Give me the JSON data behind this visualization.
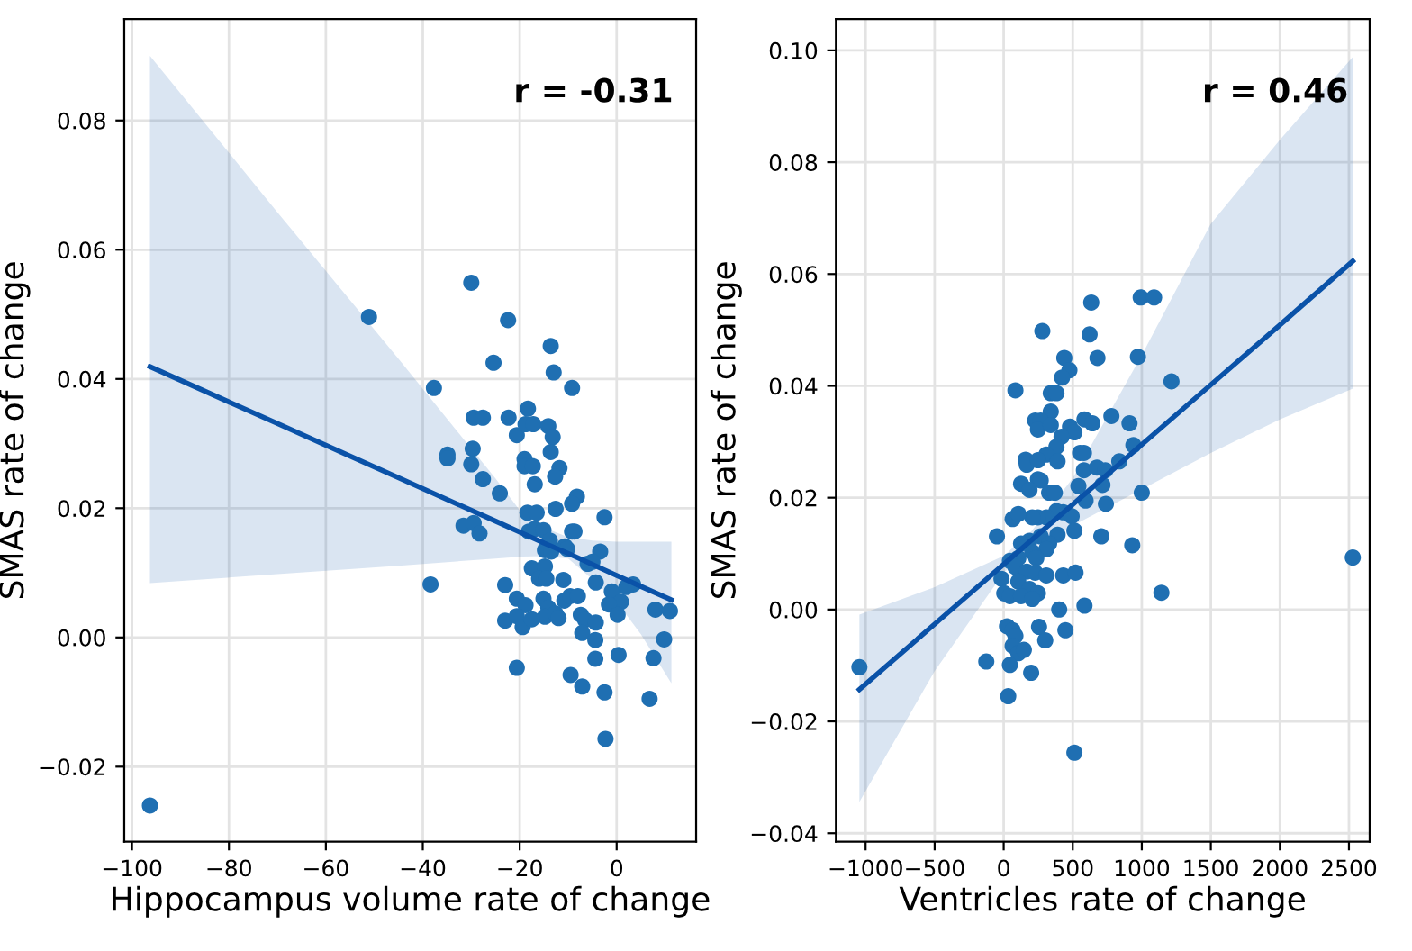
{
  "chart_data": [
    {
      "type": "scatter",
      "xlabel": "Hippocampus volume rate of change",
      "ylabel": "SMAS rate of change",
      "annotations": [
        "r = -0.31"
      ],
      "grid": true,
      "xlim": [
        -101.6,
        16.4
      ],
      "ylim": [
        -0.0316,
        0.0957
      ],
      "xticks": [
        {
          "value": -100,
          "label": "−100"
        },
        {
          "value": -80,
          "label": "−80"
        },
        {
          "value": -60,
          "label": "−60"
        },
        {
          "value": -40,
          "label": "−40"
        },
        {
          "value": -20,
          "label": "−20"
        },
        {
          "value": 0,
          "label": "0"
        }
      ],
      "yticks": [
        {
          "value": -0.02,
          "label": "−0.02"
        },
        {
          "value": 0,
          "label": "0.00"
        },
        {
          "value": 0.02,
          "label": "0.02"
        },
        {
          "value": 0.04,
          "label": "0.04"
        },
        {
          "value": 0.06,
          "label": "0.06"
        },
        {
          "value": 0.08,
          "label": "0.08"
        }
      ],
      "series": [
        {
          "type": "scatter",
          "color": "#1f6fb2",
          "marker": "circle",
          "x": [
            -96.3,
            -51.1,
            -30.0,
            -22.4,
            -13.6,
            -13.0,
            -9.2,
            -25.4,
            -37.7,
            -38.4,
            -34.9,
            -34.9,
            -29.5,
            -27.6,
            -29.7,
            -30.0,
            -27.6,
            -24.1,
            -31.6,
            -29.5,
            -28.3,
            -22.3,
            -20.6,
            -18.3,
            -18.8,
            -17.2,
            -14.1,
            -13.2,
            -13.6,
            -19.0,
            -19.0,
            -17.3,
            -16.9,
            -11.8,
            -12.7,
            -8.2,
            -9.2,
            -18.4,
            -16.5,
            -12.6,
            -2.5,
            -9.2,
            -8.7,
            -18.1,
            -16.9,
            -15.1,
            -13.8,
            -14.8,
            -13.5,
            -10.7,
            -10.2,
            -3.4,
            -6.0,
            -5.0,
            -17.5,
            -14.8,
            -16.0,
            -14.5,
            -11.0,
            -4.3,
            -1.0,
            3.4,
            2.0,
            0.9,
            -1.6,
            -23.0,
            -20.6,
            -18.8,
            -15.1,
            -14.1,
            -14.8,
            -12.6,
            -12.0,
            -10.8,
            -9.6,
            -8.0,
            -23.0,
            -20.6,
            -19.4,
            -17.5,
            -7.4,
            -6.5,
            -7.1,
            -4.3,
            -4.4,
            -4.4,
            0.2,
            8.0,
            11.0,
            9.8,
            0.4,
            7.6,
            -20.6,
            -9.5,
            -7.1,
            -2.5,
            6.8,
            -2.3
          ],
          "values": [
            -0.026,
            0.0496,
            0.0549,
            0.0491,
            0.0451,
            0.041,
            0.0386,
            0.0425,
            0.0386,
            0.0082,
            0.0283,
            0.0277,
            0.034,
            0.034,
            0.0292,
            0.0268,
            0.0245,
            0.0223,
            0.0173,
            0.0177,
            0.0161,
            0.034,
            0.0313,
            0.0354,
            0.033,
            0.033,
            0.0327,
            0.031,
            0.0287,
            0.0276,
            0.0265,
            0.0265,
            0.0237,
            0.0262,
            0.0249,
            0.0218,
            0.0207,
            0.0193,
            0.0193,
            0.0199,
            0.0186,
            0.0164,
            0.0164,
            0.0164,
            0.0168,
            0.0166,
            0.015,
            0.0135,
            0.0133,
            0.0141,
            0.0137,
            0.0133,
            0.0114,
            0.0117,
            0.0107,
            0.011,
            0.0091,
            0.0091,
            0.0089,
            0.0085,
            0.0071,
            0.0082,
            0.0078,
            0.0055,
            0.0051,
            0.0081,
            0.006,
            0.005,
            0.006,
            0.0046,
            0.0032,
            0.0037,
            0.003,
            0.0057,
            0.0064,
            0.0064,
            0.0026,
            0.0033,
            0.0016,
            0.0028,
            0.0035,
            0.0027,
            0.0007,
            0.0023,
            -0.0004,
            -0.0033,
            0.0035,
            0.0043,
            0.0041,
            -0.0003,
            -0.0027,
            -0.0032,
            -0.0047,
            -0.0058,
            -0.0076,
            -0.0085,
            -0.0095,
            -0.0157
          ]
        },
        {
          "type": "line",
          "color": "#0a52a8",
          "x": [
            -96.3,
            -70,
            -45,
            -25,
            -19.4,
            -15,
            -10,
            -5,
            0,
            5,
            11.3
          ],
          "values": [
            0.0419,
            0.0331,
            0.0247,
            0.018,
            0.0161,
            0.0146,
            0.013,
            0.0113,
            0.0096,
            0.0079,
            0.0058
          ],
          "upper": [
            0.09,
            0.0658,
            0.0431,
            0.0246,
            0.0191,
            0.017,
            0.0155,
            0.015,
            0.0148,
            0.0148,
            0.0148
          ],
          "lower": [
            0.0084,
            0.0098,
            0.0111,
            0.0122,
            0.0125,
            0.0126,
            0.0122,
            0.009,
            0.0055,
            0.0005,
            -0.0071
          ]
        }
      ]
    },
    {
      "type": "scatter",
      "xlabel": "Ventricles rate of change",
      "ylabel": "SMAS rate of change",
      "annotations": [
        "r = 0.46"
      ],
      "grid": true,
      "xlim": [
        -1215,
        2650
      ],
      "ylim": [
        -0.0415,
        0.1056
      ],
      "xticks": [
        {
          "value": -1000,
          "label": "−1000"
        },
        {
          "value": -500,
          "label": "−500"
        },
        {
          "value": 0,
          "label": "0"
        },
        {
          "value": 500,
          "label": "500"
        },
        {
          "value": 1000,
          "label": "1000"
        },
        {
          "value": 1500,
          "label": "1500"
        },
        {
          "value": 2000,
          "label": "2000"
        },
        {
          "value": 2500,
          "label": "2500"
        }
      ],
      "yticks": [
        {
          "value": -0.04,
          "label": "−0.04"
        },
        {
          "value": -0.02,
          "label": "−0.02"
        },
        {
          "value": 0,
          "label": "0.00"
        },
        {
          "value": 0.02,
          "label": "0.02"
        },
        {
          "value": 0.04,
          "label": "0.04"
        },
        {
          "value": 0.06,
          "label": "0.06"
        },
        {
          "value": 0.08,
          "label": "0.08"
        },
        {
          "value": 0.1,
          "label": "0.10"
        }
      ],
      "series": [
        {
          "type": "scatter",
          "color": "#1f6fb2",
          "marker": "circle",
          "x": [
            -1045,
            -126,
            -49,
            33,
            512,
            2528,
            1142,
            992,
            1089,
            634,
            622,
            280,
            679,
            972,
            439,
            476,
            423,
            1215,
            85,
            341,
            382,
            341,
            780,
            911,
            585,
            642,
            228,
            268,
            248,
            341,
            480,
            512,
            419,
            382,
            939,
            309,
            159,
            167,
            248,
            390,
            553,
            581,
            581,
            675,
            736,
            837,
            715,
            126,
            248,
            268,
            187,
            329,
            370,
            541,
            1000,
            593,
            740,
            431,
            382,
            309,
            248,
            207,
            65,
            106,
            492,
            512,
            707,
            931,
            390,
            268,
            187,
            126,
            329,
            309,
            207,
            236,
            106,
            45,
            85,
            167,
            228,
            309,
            431,
            520,
            -16,
            106,
            187,
            248,
            4,
            45,
            126,
            207,
            402,
            585,
            256,
            447,
            301,
            24,
            65,
            85,
            65,
            106,
            146,
            45,
            199
          ],
          "values": [
            -0.0103,
            -0.0093,
            0.0131,
            -0.0155,
            -0.0256,
            0.0093,
            0.003,
            0.0558,
            0.0558,
            0.0549,
            0.0492,
            0.0498,
            0.045,
            0.0452,
            0.045,
            0.0428,
            0.0415,
            0.0408,
            0.0392,
            0.0387,
            0.0387,
            0.0354,
            0.0346,
            0.0333,
            0.034,
            0.0333,
            0.0338,
            0.0338,
            0.0322,
            0.033,
            0.0327,
            0.0317,
            0.0309,
            0.0291,
            0.0294,
            0.0277,
            0.0268,
            0.0259,
            0.0267,
            0.0265,
            0.028,
            0.028,
            0.0249,
            0.0254,
            0.0249,
            0.0265,
            0.0223,
            0.0225,
            0.0233,
            0.0231,
            0.0214,
            0.0209,
            0.0209,
            0.0221,
            0.0209,
            0.0195,
            0.0189,
            0.0174,
            0.0176,
            0.0165,
            0.0165,
            0.0165,
            0.0162,
            0.0171,
            0.0167,
            0.0141,
            0.0131,
            0.0115,
            0.0134,
            0.0131,
            0.0123,
            0.0118,
            0.0118,
            0.0108,
            0.0103,
            0.0092,
            0.0092,
            0.0087,
            0.0076,
            0.0068,
            0.0066,
            0.0061,
            0.0061,
            0.0066,
            0.0055,
            0.005,
            0.0037,
            0.0029,
            0.0029,
            0.0024,
            0.0024,
            0.0019,
            0.0,
            0.0007,
            -0.0031,
            -0.0037,
            -0.0055,
            -0.003,
            -0.0037,
            -0.0047,
            -0.0065,
            -0.0078,
            -0.0072,
            -0.0099,
            -0.0113
          ]
        },
        {
          "type": "line",
          "color": "#0a52a8",
          "x": [
            -1045,
            -500,
            0,
            200,
            500,
            1000,
            1500,
            2000,
            2528
          ],
          "values": [
            -0.0143,
            -0.0026,
            0.0081,
            0.0124,
            0.0188,
            0.0295,
            0.0402,
            0.0509,
            0.0623
          ],
          "upper": [
            -0.0009,
            0.004,
            0.0096,
            0.014,
            0.0235,
            0.0455,
            0.069,
            0.084,
            0.0988
          ],
          "lower": [
            -0.0344,
            -0.011,
            0.0066,
            0.0108,
            0.015,
            0.0215,
            0.028,
            0.034,
            0.0395
          ]
        }
      ]
    }
  ]
}
